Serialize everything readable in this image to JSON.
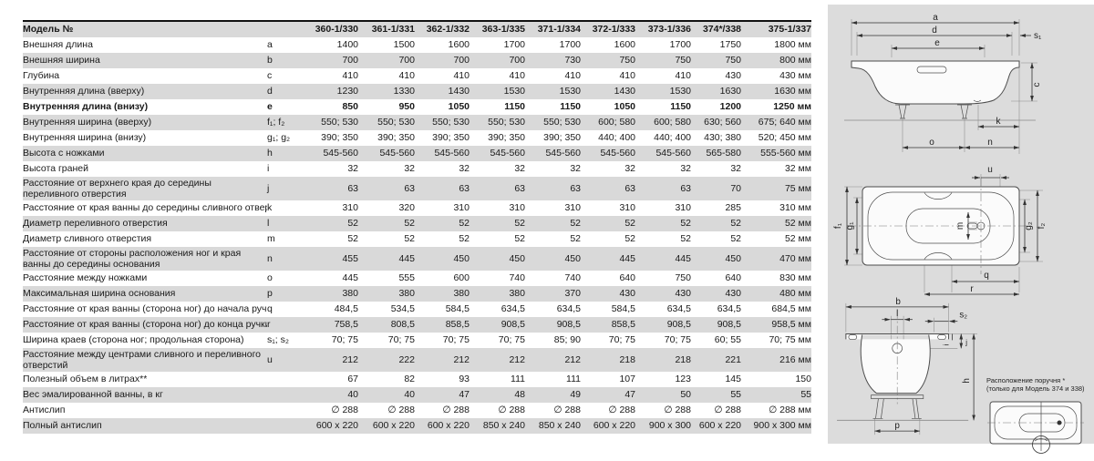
{
  "table": {
    "header_label": "Модель №",
    "models": [
      "360-1/330",
      "361-1/331",
      "362-1/332",
      "363-1/335",
      "371-1/334",
      "372-1/333",
      "373-1/336",
      "374*/338",
      "375-1/337"
    ],
    "rows": [
      {
        "label": "Внешняя длина",
        "letter": "a",
        "values": [
          "1400",
          "1500",
          "1600",
          "1700",
          "1700",
          "1600",
          "1700",
          "1750",
          "1800"
        ],
        "unit": "мм",
        "bold": false
      },
      {
        "label": "Внешняя ширина",
        "letter": "b",
        "values": [
          "700",
          "700",
          "700",
          "700",
          "730",
          "750",
          "750",
          "750",
          "800"
        ],
        "unit": "мм",
        "bold": false
      },
      {
        "label": "Глубина",
        "letter": "c",
        "values": [
          "410",
          "410",
          "410",
          "410",
          "410",
          "410",
          "410",
          "430",
          "430"
        ],
        "unit": "мм",
        "bold": false
      },
      {
        "label": "Внутренняя длина (вверху)",
        "letter": "d",
        "values": [
          "1230",
          "1330",
          "1430",
          "1530",
          "1530",
          "1430",
          "1530",
          "1630",
          "1630"
        ],
        "unit": "мм",
        "bold": false
      },
      {
        "label": "Внутренняя длина (внизу)",
        "letter": "e",
        "values": [
          "850",
          "950",
          "1050",
          "1150",
          "1150",
          "1050",
          "1150",
          "1200",
          "1250"
        ],
        "unit": "мм",
        "bold": true
      },
      {
        "label": "Внутренняя ширина (вверху)",
        "letter": "f₁; f₂",
        "values": [
          "550; 530",
          "550; 530",
          "550; 530",
          "550; 530",
          "550; 530",
          "600; 580",
          "600; 580",
          "630; 560",
          "675; 640"
        ],
        "unit": "мм",
        "bold": false
      },
      {
        "label": "Внутренняя ширина (внизу)",
        "letter": "g₁; g₂",
        "values": [
          "390; 350",
          "390; 350",
          "390; 350",
          "390; 350",
          "390; 350",
          "440; 400",
          "440; 400",
          "430; 380",
          "520; 450"
        ],
        "unit": "мм",
        "bold": false
      },
      {
        "label": "Высота с ножками",
        "letter": "h",
        "values": [
          "545-560",
          "545-560",
          "545-560",
          "545-560",
          "545-560",
          "545-560",
          "545-560",
          "565-580",
          "555-560"
        ],
        "unit": "мм",
        "bold": false
      },
      {
        "label": "Высота граней",
        "letter": "i",
        "values": [
          "32",
          "32",
          "32",
          "32",
          "32",
          "32",
          "32",
          "32",
          "32"
        ],
        "unit": "мм",
        "bold": false
      },
      {
        "label": "Расстояние от верхнего края до середины переливного отверстия",
        "letter": "j",
        "values": [
          "63",
          "63",
          "63",
          "63",
          "63",
          "63",
          "63",
          "70",
          "75"
        ],
        "unit": "мм",
        "bold": false
      },
      {
        "label": "Расстояние от края ванны до середины сливного отверстия",
        "letter": "k",
        "values": [
          "310",
          "320",
          "310",
          "310",
          "310",
          "310",
          "310",
          "285",
          "310"
        ],
        "unit": "мм",
        "bold": false
      },
      {
        "label": "Диаметр переливного отверстия",
        "letter": "l",
        "values": [
          "52",
          "52",
          "52",
          "52",
          "52",
          "52",
          "52",
          "52",
          "52"
        ],
        "unit": "мм",
        "bold": false
      },
      {
        "label": "Диаметр сливного отверстия",
        "letter": "m",
        "values": [
          "52",
          "52",
          "52",
          "52",
          "52",
          "52",
          "52",
          "52",
          "52"
        ],
        "unit": "мм",
        "bold": false
      },
      {
        "label": "Расстояние от стороны расположения ног и края ванны до середины основания",
        "letter": "n",
        "values": [
          "455",
          "445",
          "450",
          "450",
          "450",
          "445",
          "445",
          "450",
          "470"
        ],
        "unit": "мм",
        "bold": false
      },
      {
        "label": "Расстояние между ножками",
        "letter": "o",
        "values": [
          "445",
          "555",
          "600",
          "740",
          "740",
          "640",
          "750",
          "640",
          "830"
        ],
        "unit": "мм",
        "bold": false
      },
      {
        "label": "Максимальная ширина основания",
        "letter": "p",
        "values": [
          "380",
          "380",
          "380",
          "380",
          "370",
          "430",
          "430",
          "430",
          "480"
        ],
        "unit": "мм",
        "bold": false
      },
      {
        "label": "Расстояние от края ванны (сторона ног) до начала ручки",
        "letter": "q",
        "values": [
          "484,5",
          "534,5",
          "584,5",
          "634,5",
          "634,5",
          "584,5",
          "634,5",
          "634,5",
          "684,5"
        ],
        "unit": "мм",
        "bold": false
      },
      {
        "label": "Расстояние от края ванны (сторона ног) до конца ручки",
        "letter": "r",
        "values": [
          "758,5",
          "808,5",
          "858,5",
          "908,5",
          "908,5",
          "858,5",
          "908,5",
          "908,5",
          "958,5"
        ],
        "unit": "мм",
        "bold": false
      },
      {
        "label": "Ширина краев (сторона ног; продольная сторона)",
        "letter": "s₁; s₂",
        "values": [
          "70; 75",
          "70; 75",
          "70; 75",
          "70; 75",
          "85; 90",
          "70; 75",
          "70; 75",
          "60; 55",
          "70; 75"
        ],
        "unit": "мм",
        "bold": false
      },
      {
        "label": "Расстояние между центрами сливного и переливного отверстий",
        "letter": "u",
        "values": [
          "212",
          "222",
          "212",
          "212",
          "212",
          "218",
          "218",
          "221",
          "216"
        ],
        "unit": "мм",
        "bold": false
      },
      {
        "label": "Полезный объем в литрах**",
        "letter": "",
        "values": [
          "67",
          "82",
          "93",
          "111",
          "111",
          "107",
          "123",
          "145",
          "150"
        ],
        "unit": "",
        "bold": false
      },
      {
        "label": "Вес эмалированной ванны, в кг",
        "letter": "",
        "values": [
          "40",
          "40",
          "47",
          "48",
          "49",
          "47",
          "50",
          "55",
          "55"
        ],
        "unit": "",
        "bold": false
      },
      {
        "label": "Антислип",
        "letter": "",
        "values": [
          "∅ 288",
          "∅ 288",
          "∅ 288",
          "∅ 288",
          "∅ 288",
          "∅ 288",
          "∅ 288",
          "∅ 288",
          "∅ 288"
        ],
        "unit": "мм",
        "bold": false
      },
      {
        "label": "Полный антислип",
        "letter": "",
        "values": [
          "600 x 220",
          "600 x 220",
          "600 x 220",
          "850 x 240",
          "850 x 240",
          "600 x 220",
          "900 x 300",
          "600 x 220",
          "900 x 300"
        ],
        "unit": "мм",
        "bold": false
      }
    ]
  },
  "panel": {
    "note_line1": "Расположение поручня *",
    "note_line2": "(только для Модель 374 и 338)",
    "side": {
      "a": "a",
      "d": "d",
      "e": "e",
      "s1": "s₁",
      "c": "c",
      "k": "k",
      "o": "o",
      "n": "n"
    },
    "top": {
      "u": "u",
      "m": "m",
      "f1": "f₁",
      "g1": "g₁",
      "g2": "g₂",
      "f2": "f₂",
      "q": "q",
      "r": "r"
    },
    "end": {
      "b": "b",
      "l": "l",
      "s2": "s₂",
      "i": "i",
      "j": "j",
      "h": "h",
      "p": "p"
    }
  },
  "colors": {
    "row_shade": "#d9d9d9",
    "panel_bg": "#dcdcdc",
    "header_border": "#111111",
    "line": "#4d4d4d"
  }
}
